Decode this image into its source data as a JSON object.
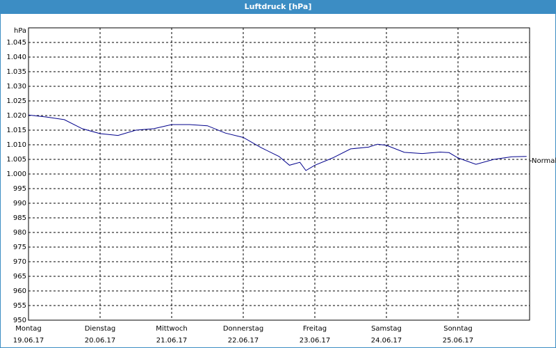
{
  "chart_data": {
    "type": "line",
    "title": "Luftdruck [hPa]",
    "y_label": "hPa",
    "xlim": [
      0,
      168
    ],
    "ylim": [
      950,
      1050
    ],
    "xticks": [
      {
        "value": 0,
        "label": "Montag",
        "date": "19.06.17"
      },
      {
        "value": 24,
        "label": "Dienstag",
        "date": "20.06.17"
      },
      {
        "value": 48,
        "label": "Mittwoch",
        "date": "21.06.17"
      },
      {
        "value": 72,
        "label": "Donnerstag",
        "date": "22.06.17"
      },
      {
        "value": 96,
        "label": "Freitag",
        "date": "23.06.17"
      },
      {
        "value": 120,
        "label": "Samstag",
        "date": "24.06.17"
      },
      {
        "value": 144,
        "label": "Sonntag",
        "date": "25.06.17"
      },
      168
    ],
    "yticks": [
      {
        "value": 950,
        "label": "950"
      },
      {
        "value": 955,
        "label": "955"
      },
      {
        "value": 960,
        "label": "960"
      },
      {
        "value": 965,
        "label": "965"
      },
      {
        "value": 970,
        "label": "970"
      },
      {
        "value": 975,
        "label": "975"
      },
      {
        "value": 980,
        "label": "980"
      },
      {
        "value": 985,
        "label": "985"
      },
      {
        "value": 990,
        "label": "990"
      },
      {
        "value": 995,
        "label": "995"
      },
      {
        "value": 1000,
        "label": "1.000"
      },
      {
        "value": 1005,
        "label": "1.005"
      },
      {
        "value": 1010,
        "label": "1.010"
      },
      {
        "value": 1015,
        "label": "1.015"
      },
      {
        "value": 1020,
        "label": "1.020"
      },
      {
        "value": 1025,
        "label": "1.025"
      },
      {
        "value": 1030,
        "label": "1.030"
      },
      {
        "value": 1035,
        "label": "1.035"
      },
      {
        "value": 1040,
        "label": "1.040"
      },
      {
        "value": 1045,
        "label": "1.045"
      },
      1050
    ],
    "grid": true,
    "annotation": {
      "text": "Normal",
      "value": 1004.5
    },
    "series": [
      {
        "color": "#00008b",
        "x": [
          0,
          6,
          12,
          18,
          24,
          30,
          36,
          42,
          48,
          54,
          60,
          66,
          72,
          78,
          84,
          87.5,
          91,
          93,
          96,
          102,
          108,
          114,
          117,
          120,
          126,
          132,
          138,
          141,
          144,
          150,
          156,
          162,
          167
        ],
        "values": [
          1020.2,
          1019.5,
          1018.6,
          1015.5,
          1013.8,
          1013.2,
          1015.0,
          1015.5,
          1016.9,
          1016.9,
          1016.5,
          1014.0,
          1012.5,
          1009.0,
          1006.0,
          1003.0,
          1004.0,
          1001.2,
          1003.0,
          1005.5,
          1008.6,
          1009.2,
          1010.2,
          1009.8,
          1007.4,
          1007.0,
          1007.5,
          1007.3,
          1005.5,
          1003.3,
          1005.0,
          1005.9,
          1006.0
        ]
      }
    ]
  }
}
